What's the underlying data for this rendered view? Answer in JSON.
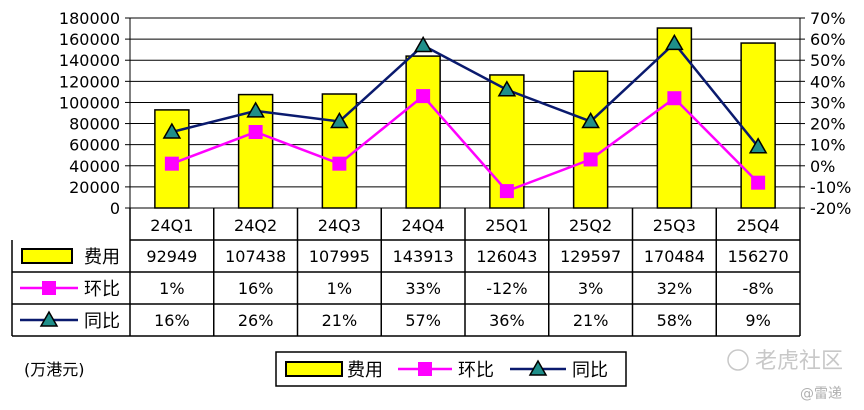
{
  "chart_data": {
    "type": "bar",
    "categories": [
      "24Q1",
      "24Q2",
      "24Q3",
      "24Q4",
      "25Q1",
      "25Q2",
      "25Q3",
      "25Q4"
    ],
    "series": [
      {
        "name": "费用",
        "type": "bar",
        "axis": "left",
        "values": [
          92949,
          107438,
          107995,
          143913,
          126043,
          129597,
          170484,
          156270
        ],
        "color": "#ffff00"
      },
      {
        "name": "环比",
        "type": "line",
        "axis": "right",
        "marker": "square",
        "values": [
          1,
          16,
          1,
          33,
          -12,
          3,
          32,
          -8
        ],
        "color": "#ff00ff"
      },
      {
        "name": "同比",
        "type": "line",
        "axis": "right",
        "marker": "triangle",
        "values": [
          16,
          26,
          21,
          57,
          36,
          21,
          58,
          9
        ],
        "color": "#0a1a6e"
      }
    ],
    "table": {
      "费用": [
        "92949",
        "107438",
        "107995",
        "143913",
        "126043",
        "129597",
        "170484",
        "156270"
      ],
      "环比": [
        "1%",
        "16%",
        "1%",
        "33%",
        "-12%",
        "3%",
        "32%",
        "-8%"
      ],
      "同比": [
        "16%",
        "26%",
        "21%",
        "57%",
        "36%",
        "21%",
        "58%",
        "9%"
      ]
    },
    "y_left": {
      "range": [
        0,
        180000
      ],
      "ticks": [
        "0",
        "20000",
        "40000",
        "60000",
        "80000",
        "100000",
        "120000",
        "140000",
        "160000",
        "180000"
      ]
    },
    "y_right": {
      "range": [
        -20,
        70
      ],
      "ticks": [
        "-20%",
        "-10%",
        "0%",
        "10%",
        "20%",
        "30%",
        "40%",
        "50%",
        "60%",
        "70%"
      ]
    },
    "unit_label": "(万港元)",
    "grid": true,
    "legend_position": "bottom-center"
  },
  "watermark": {
    "brand": "老虎社区",
    "author": "@雷递"
  }
}
